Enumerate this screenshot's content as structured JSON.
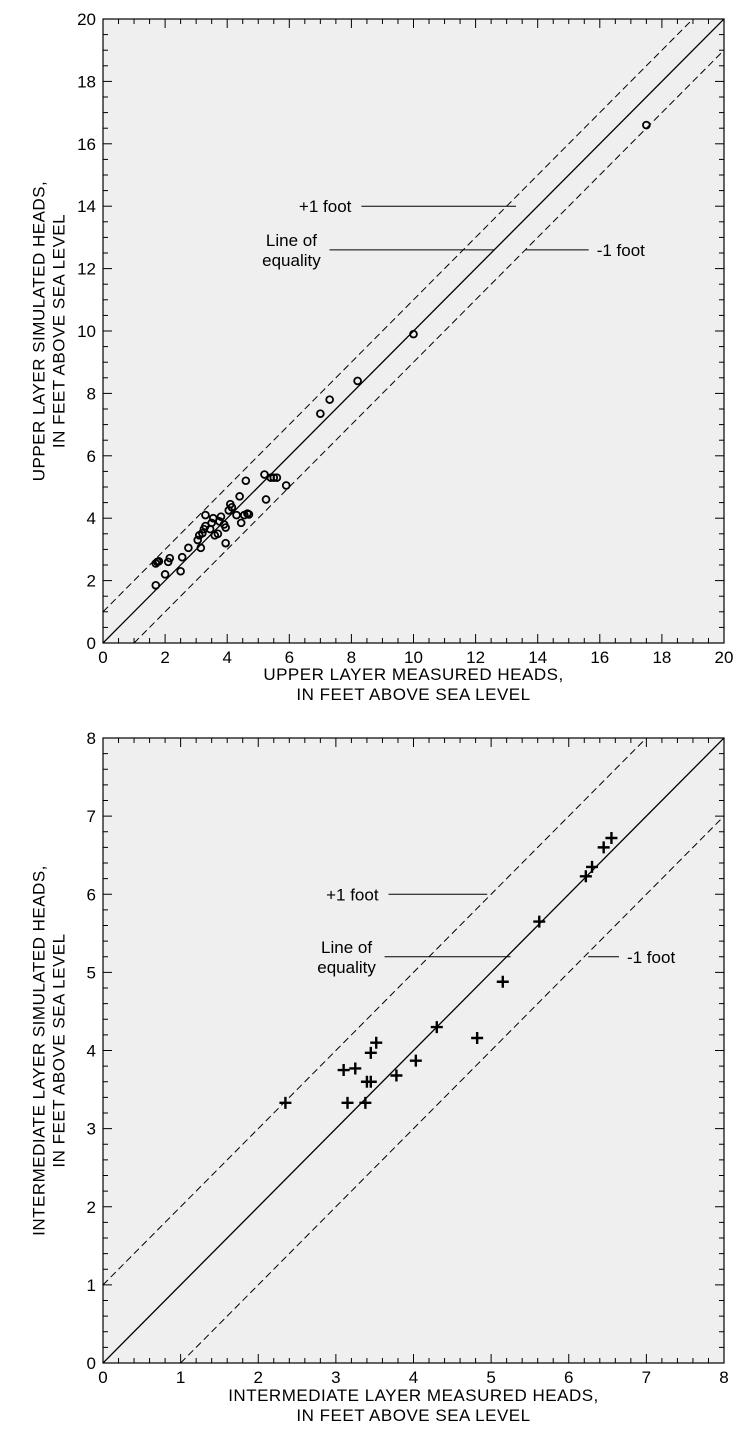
{
  "colors": {
    "plot_background": "#efefef",
    "ink": "#000000",
    "page": "#ffffff"
  },
  "chart_data": [
    {
      "type": "scatter",
      "marker": "open-circle",
      "xlim": [
        0,
        20
      ],
      "ylim": [
        0,
        20
      ],
      "xticks": [
        0,
        2,
        4,
        6,
        8,
        10,
        12,
        14,
        16,
        18,
        20
      ],
      "yticks": [
        0,
        2,
        4,
        6,
        8,
        10,
        12,
        14,
        16,
        18,
        20
      ],
      "minor_tick_step": 0.5,
      "grid": false,
      "xlabel": [
        "UPPER LAYER MEASURED HEADS,",
        "IN FEET ABOVE SEA LEVEL"
      ],
      "ylabel": [
        "UPPER LAYER SIMULATED HEADS,",
        "IN FEET ABOVE SEA LEVEL"
      ],
      "reference_lines": [
        {
          "offset": 0,
          "style": "solid"
        },
        {
          "offset": 1,
          "style": "dashed"
        },
        {
          "offset": -1,
          "style": "dashed"
        }
      ],
      "annotations": [
        {
          "lines": [
            "+1  foot"
          ],
          "anchor": "end",
          "text_at": [
            8.0,
            14.0
          ],
          "leader_to": [
            13.3,
            14.0
          ]
        },
        {
          "lines": [
            "Line of",
            "equality"
          ],
          "anchor": "end",
          "text_at": [
            7.1,
            12.6
          ],
          "leader_to": [
            12.6,
            12.6
          ]
        },
        {
          "lines": [
            "-1  foot"
          ],
          "anchor": "start",
          "text_at": [
            15.9,
            12.6
          ],
          "leader_from": [
            13.6,
            12.6
          ]
        }
      ],
      "points": [
        [
          1.7,
          1.85
        ],
        [
          1.7,
          2.55
        ],
        [
          1.75,
          2.6
        ],
        [
          1.8,
          2.62
        ],
        [
          2.0,
          2.2
        ],
        [
          2.1,
          2.6
        ],
        [
          2.15,
          2.72
        ],
        [
          2.5,
          2.3
        ],
        [
          2.55,
          2.75
        ],
        [
          2.75,
          3.05
        ],
        [
          3.05,
          3.3
        ],
        [
          3.1,
          3.45
        ],
        [
          3.15,
          3.05
        ],
        [
          3.2,
          3.52
        ],
        [
          3.25,
          3.65
        ],
        [
          3.3,
          3.75
        ],
        [
          3.3,
          4.1
        ],
        [
          3.45,
          3.65
        ],
        [
          3.5,
          3.85
        ],
        [
          3.55,
          4.0
        ],
        [
          3.6,
          3.45
        ],
        [
          3.7,
          3.5
        ],
        [
          3.75,
          3.9
        ],
        [
          3.8,
          4.05
        ],
        [
          3.9,
          3.8
        ],
        [
          3.95,
          3.7
        ],
        [
          3.95,
          3.2
        ],
        [
          4.05,
          4.25
        ],
        [
          4.1,
          4.45
        ],
        [
          4.15,
          4.35
        ],
        [
          4.3,
          4.1
        ],
        [
          4.4,
          4.7
        ],
        [
          4.45,
          3.85
        ],
        [
          4.55,
          4.1
        ],
        [
          4.6,
          5.2
        ],
        [
          4.65,
          4.15
        ],
        [
          4.7,
          4.12
        ],
        [
          5.2,
          5.4
        ],
        [
          5.25,
          4.6
        ],
        [
          5.4,
          5.3
        ],
        [
          5.5,
          5.3
        ],
        [
          5.6,
          5.3
        ],
        [
          5.9,
          5.05
        ],
        [
          7.0,
          7.35
        ],
        [
          7.3,
          7.8
        ],
        [
          8.2,
          8.4
        ],
        [
          10.0,
          9.9
        ],
        [
          17.5,
          16.6
        ]
      ]
    },
    {
      "type": "scatter",
      "marker": "plus",
      "xlim": [
        0,
        8
      ],
      "ylim": [
        0,
        8
      ],
      "xticks": [
        0,
        1,
        2,
        3,
        4,
        5,
        6,
        7,
        8
      ],
      "yticks": [
        0,
        1,
        2,
        3,
        4,
        5,
        6,
        7,
        8
      ],
      "minor_tick_step": 0.2,
      "grid": false,
      "xlabel": [
        "INTERMEDIATE LAYER MEASURED HEADS,",
        "IN FEET ABOVE SEA LEVEL"
      ],
      "ylabel": [
        "INTERMEDIATE LAYER SIMULATED HEADS,",
        "IN FEET ABOVE SEA LEVEL"
      ],
      "reference_lines": [
        {
          "offset": 0,
          "style": "solid"
        },
        {
          "offset": 1,
          "style": "dashed"
        },
        {
          "offset": -1,
          "style": "dashed"
        }
      ],
      "annotations": [
        {
          "lines": [
            "+1  foot"
          ],
          "anchor": "end",
          "text_at": [
            3.55,
            6.0
          ],
          "leader_to": [
            4.95,
            6.0
          ]
        },
        {
          "lines": [
            "Line of",
            "equality"
          ],
          "anchor": "end",
          "text_at": [
            3.55,
            5.2
          ],
          "leader_to": [
            5.25,
            5.2
          ]
        },
        {
          "lines": [
            "-1  foot"
          ],
          "anchor": "start",
          "text_at": [
            6.75,
            5.2
          ],
          "leader_from": [
            6.25,
            5.2
          ]
        }
      ],
      "points": [
        [
          2.35,
          3.33
        ],
        [
          3.1,
          3.75
        ],
        [
          3.15,
          3.33
        ],
        [
          3.25,
          3.77
        ],
        [
          3.38,
          3.33
        ],
        [
          3.4,
          3.6
        ],
        [
          3.45,
          3.6
        ],
        [
          3.45,
          3.97
        ],
        [
          3.52,
          4.1
        ],
        [
          3.78,
          3.68
        ],
        [
          4.03,
          3.87
        ],
        [
          4.3,
          4.3
        ],
        [
          4.82,
          4.16
        ],
        [
          5.15,
          4.88
        ],
        [
          5.62,
          5.65
        ],
        [
          6.22,
          6.23
        ],
        [
          6.3,
          6.35
        ],
        [
          6.45,
          6.6
        ],
        [
          6.55,
          6.72
        ]
      ]
    }
  ]
}
